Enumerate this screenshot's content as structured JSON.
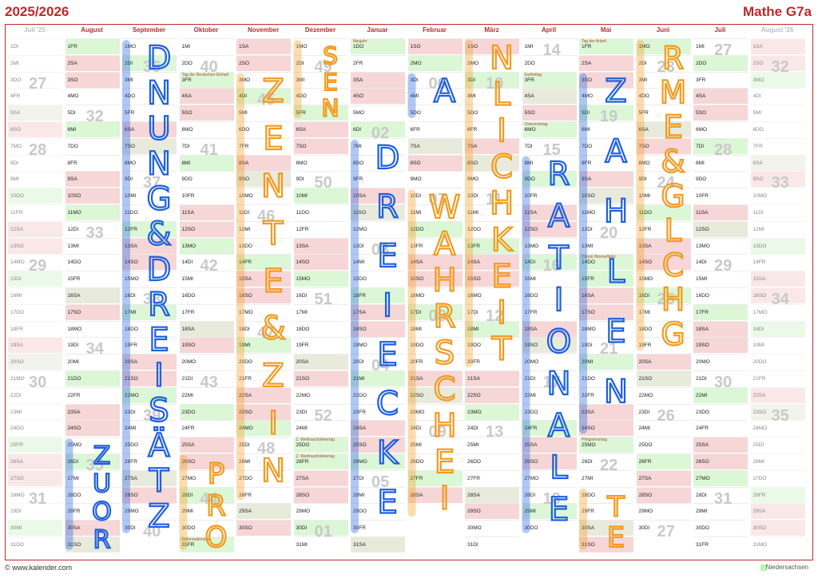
{
  "header": {
    "title_left": "2025/2026",
    "title_right": "Mathe G7a"
  },
  "footer": {
    "url": "© www.kalender.com",
    "state": "Niedersachsen"
  },
  "colors": {
    "accent": "#c0282a",
    "weekend": "#f6d6d6",
    "holiday": "#dbf7d6",
    "ink_blue": "#1d5fe0",
    "ink_orange": "#f39a1e"
  },
  "months": [
    {
      "name": "Juli '25",
      "dim": true,
      "start_dow": 2,
      "days": 31
    },
    {
      "name": "August",
      "dim": false,
      "start_dow": 5,
      "days": 31
    },
    {
      "name": "September",
      "dim": false,
      "start_dow": 1,
      "days": 30
    },
    {
      "name": "Oktober",
      "dim": false,
      "start_dow": 3,
      "days": 31
    },
    {
      "name": "November",
      "dim": false,
      "start_dow": 6,
      "days": 30
    },
    {
      "name": "Dezember",
      "dim": false,
      "start_dow": 1,
      "days": 31
    },
    {
      "name": "Januar",
      "dim": false,
      "start_dow": 4,
      "days": 31
    },
    {
      "name": "Februar",
      "dim": false,
      "start_dow": 0,
      "days": 28
    },
    {
      "name": "März",
      "dim": false,
      "start_dow": 0,
      "days": 31
    },
    {
      "name": "April",
      "dim": false,
      "start_dow": 3,
      "days": 30
    },
    {
      "name": "Mai",
      "dim": false,
      "start_dow": 5,
      "days": 31
    },
    {
      "name": "Juni",
      "dim": false,
      "start_dow": 1,
      "days": 30
    },
    {
      "name": "Juli",
      "dim": false,
      "start_dow": 3,
      "days": 31
    },
    {
      "name": "August '26",
      "dim": true,
      "start_dow": 6,
      "days": 31
    }
  ],
  "weekday_abbr": [
    "SO",
    "MO",
    "DI",
    "MI",
    "DO",
    "FR",
    "SA"
  ],
  "holidays": [
    {
      "month": 3,
      "day": 3,
      "label": "Tag der Deutschen Einheit"
    },
    {
      "month": 3,
      "day": 31,
      "label": "Reformationstag"
    },
    {
      "month": 5,
      "day": 25,
      "label": "1. Weihnachtsfeiertag"
    },
    {
      "month": 5,
      "day": 26,
      "label": "2. Weihnachtsfeiertag"
    },
    {
      "month": 6,
      "day": 1,
      "label": "Neujahr"
    },
    {
      "month": 9,
      "day": 3,
      "label": "Karfreitag"
    },
    {
      "month": 9,
      "day": 6,
      "label": "Ostermontag"
    },
    {
      "month": 10,
      "day": 1,
      "label": "Tag der Arbeit"
    },
    {
      "month": 10,
      "day": 14,
      "label": "Christi Himmelfahrt"
    },
    {
      "month": 10,
      "day": 25,
      "label": "Pfingstmontag"
    }
  ],
  "week_numbers": [
    {
      "col": 0,
      "row": 2,
      "text": "27"
    },
    {
      "col": 0,
      "row": 6,
      "text": "28"
    },
    {
      "col": 0,
      "row": 13,
      "text": "29"
    },
    {
      "col": 0,
      "row": 20,
      "text": "30"
    },
    {
      "col": 0,
      "row": 27,
      "text": "31"
    },
    {
      "col": 1,
      "row": 4,
      "text": "32"
    },
    {
      "col": 1,
      "row": 11,
      "text": "33"
    },
    {
      "col": 1,
      "row": 18,
      "text": "34"
    },
    {
      "col": 1,
      "row": 25,
      "text": "35"
    },
    {
      "col": 2,
      "row": 1,
      "text": "36"
    },
    {
      "col": 2,
      "row": 8,
      "text": "37"
    },
    {
      "col": 2,
      "row": 15,
      "text": "38"
    },
    {
      "col": 2,
      "row": 22,
      "text": "39"
    },
    {
      "col": 2,
      "row": 29,
      "text": "40"
    },
    {
      "col": 3,
      "row": 1,
      "text": "40"
    },
    {
      "col": 3,
      "row": 6,
      "text": "41"
    },
    {
      "col": 3,
      "row": 13,
      "text": "42"
    },
    {
      "col": 3,
      "row": 20,
      "text": "43"
    },
    {
      "col": 3,
      "row": 27,
      "text": "44"
    },
    {
      "col": 4,
      "row": 3,
      "text": "45"
    },
    {
      "col": 4,
      "row": 10,
      "text": "46"
    },
    {
      "col": 4,
      "row": 17,
      "text": "47"
    },
    {
      "col": 4,
      "row": 24,
      "text": "48"
    },
    {
      "col": 5,
      "row": 1,
      "text": "49"
    },
    {
      "col": 5,
      "row": 8,
      "text": "50"
    },
    {
      "col": 5,
      "row": 15,
      "text": "51"
    },
    {
      "col": 5,
      "row": 22,
      "text": "52"
    },
    {
      "col": 5,
      "row": 29,
      "text": "01"
    },
    {
      "col": 6,
      "row": 5,
      "text": "02"
    },
    {
      "col": 6,
      "row": 12,
      "text": "03"
    },
    {
      "col": 6,
      "row": 19,
      "text": "04"
    },
    {
      "col": 6,
      "row": 26,
      "text": "05"
    },
    {
      "col": 7,
      "row": 2,
      "text": "06"
    },
    {
      "col": 7,
      "row": 9,
      "text": "07"
    },
    {
      "col": 7,
      "row": 16,
      "text": "08"
    },
    {
      "col": 7,
      "row": 23,
      "text": "09"
    },
    {
      "col": 8,
      "row": 2,
      "text": "10"
    },
    {
      "col": 8,
      "row": 9,
      "text": "11"
    },
    {
      "col": 8,
      "row": 16,
      "text": "12"
    },
    {
      "col": 8,
      "row": 23,
      "text": "13"
    },
    {
      "col": 9,
      "row": 0,
      "text": "14"
    },
    {
      "col": 9,
      "row": 6,
      "text": "15"
    },
    {
      "col": 9,
      "row": 13,
      "text": "16"
    },
    {
      "col": 9,
      "row": 20,
      "text": "17"
    },
    {
      "col": 9,
      "row": 27,
      "text": "18"
    },
    {
      "col": 10,
      "row": 4,
      "text": "19"
    },
    {
      "col": 10,
      "row": 11,
      "text": "20"
    },
    {
      "col": 10,
      "row": 18,
      "text": "21"
    },
    {
      "col": 10,
      "row": 25,
      "text": "22"
    },
    {
      "col": 11,
      "row": 1,
      "text": "23"
    },
    {
      "col": 11,
      "row": 8,
      "text": "24"
    },
    {
      "col": 11,
      "row": 15,
      "text": "25"
    },
    {
      "col": 11,
      "row": 22,
      "text": "26"
    },
    {
      "col": 11,
      "row": 29,
      "text": "27"
    },
    {
      "col": 12,
      "row": 0,
      "text": "27"
    },
    {
      "col": 12,
      "row": 6,
      "text": "28"
    },
    {
      "col": 12,
      "row": 13,
      "text": "29"
    },
    {
      "col": 12,
      "row": 20,
      "text": "30"
    },
    {
      "col": 12,
      "row": 27,
      "text": "31"
    },
    {
      "col": 13,
      "row": 1,
      "text": "32"
    },
    {
      "col": 13,
      "row": 8,
      "text": "33"
    },
    {
      "col": 13,
      "row": 15,
      "text": "34"
    },
    {
      "col": 13,
      "row": 22,
      "text": "35"
    }
  ],
  "handwriting": [
    {
      "col": 2,
      "color": "blue",
      "text": "DNUNG&DREISÄTZ",
      "row_start": 0,
      "row_end": 30
    },
    {
      "col": 1,
      "color": "blue",
      "text": "ZUOR",
      "row_start": 24,
      "row_end": 31
    },
    {
      "col": 3,
      "color": "orange",
      "text": "PRO",
      "row_start": 25,
      "row_end": 31
    },
    {
      "col": 4,
      "color": "orange",
      "text": "ZENTE&ZIN",
      "row_start": 2,
      "row_end": 28
    },
    {
      "col": 5,
      "color": "orange",
      "text": "SEN",
      "row_start": 0,
      "row_end": 5
    },
    {
      "col": 6,
      "color": "blue",
      "text": "DREIECKE",
      "row_start": 6,
      "row_end": 30
    },
    {
      "col": 7,
      "color": "blue",
      "text": "A",
      "row_start": 2,
      "row_end": 5
    },
    {
      "col": 7,
      "color": "orange",
      "text": "WAHRSCHEI",
      "row_start": 9,
      "row_end": 29
    },
    {
      "col": 8,
      "color": "orange",
      "text": "NLICHKEIT",
      "row_start": 0,
      "row_end": 20
    },
    {
      "col": 9,
      "color": "blue",
      "text": "RATIONALE",
      "row_start": 7,
      "row_end": 30
    },
    {
      "col": 10,
      "color": "blue",
      "text": "ZAHLEN",
      "row_start": 2,
      "row_end": 24
    },
    {
      "col": 10,
      "color": "orange",
      "text": "TE",
      "row_start": 27,
      "row_end": 31
    },
    {
      "col": 11,
      "color": "orange",
      "text": "RME&GLCHG",
      "row_start": 0,
      "row_end": 19
    }
  ]
}
